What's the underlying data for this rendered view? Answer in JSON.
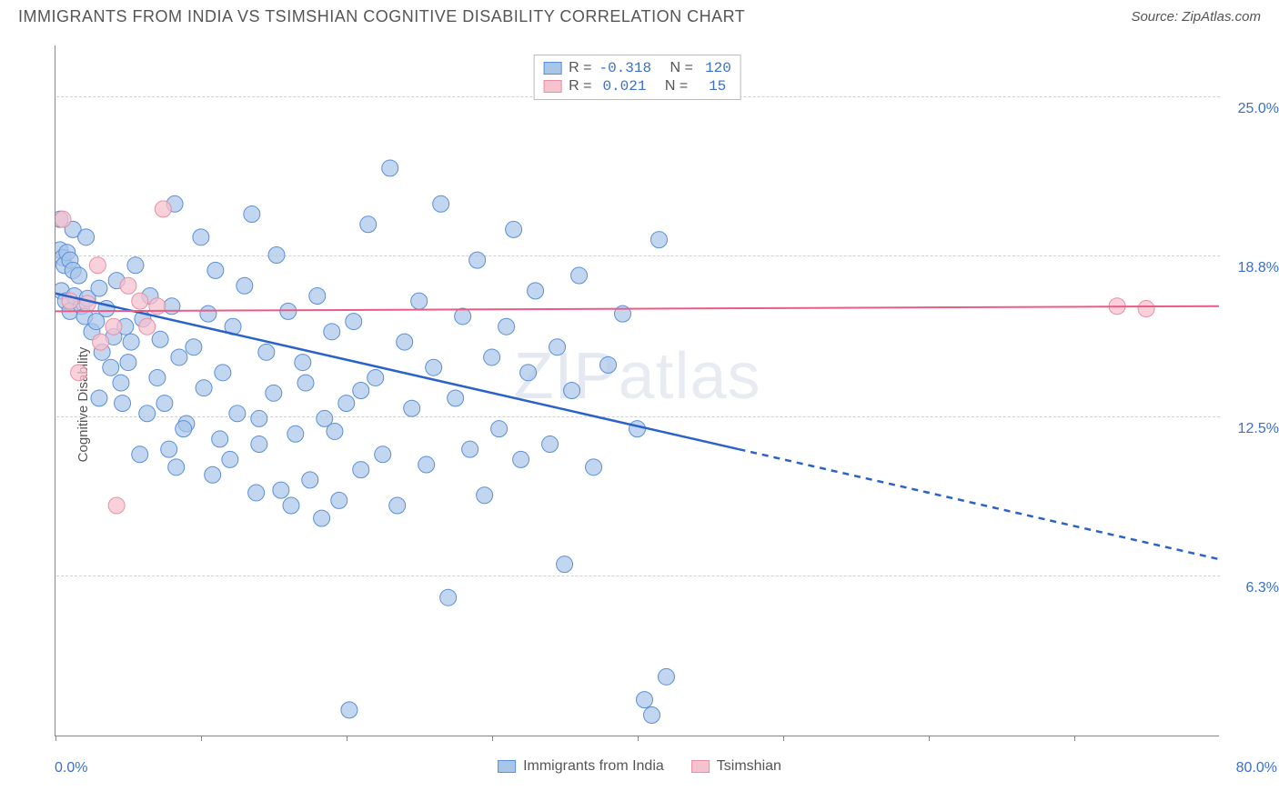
{
  "header": {
    "title": "IMMIGRANTS FROM INDIA VS TSIMSHIAN COGNITIVE DISABILITY CORRELATION CHART",
    "source": "Source: ZipAtlas.com"
  },
  "watermark": {
    "left": "ZIP",
    "right": "atlas"
  },
  "chart": {
    "type": "scatter",
    "background_color": "#ffffff",
    "grid_color": "#d0d0d0",
    "axis_color": "#888888",
    "label_color": "#3b6fc9",
    "text_color": "#555555",
    "label_fontsize": 16,
    "title_fontsize": 18,
    "xlim": [
      0,
      80
    ],
    "ylim": [
      0,
      27
    ],
    "x_tick_positions": [
      0,
      10,
      20,
      30,
      40,
      50,
      60,
      70
    ],
    "x_axis_labels": {
      "min": "0.0%",
      "max": "80.0%"
    },
    "y_gridlines": [
      {
        "value": 6.3,
        "label": "6.3%"
      },
      {
        "value": 12.5,
        "label": "12.5%"
      },
      {
        "value": 18.8,
        "label": "18.8%"
      },
      {
        "value": 25.0,
        "label": "25.0%"
      }
    ],
    "y_axis_title": "Cognitive Disability",
    "series": [
      {
        "name": "Immigrants from India",
        "color_fill": "#a8c5ea",
        "color_stroke": "#5a8fd6",
        "marker_radius": 9,
        "marker_opacity": 0.7,
        "R": "-0.318",
        "N": "120",
        "trend": {
          "solid": {
            "x1": 0,
            "y1": 17.3,
            "x2": 47,
            "y2": 11.2
          },
          "dashed": {
            "x1": 47,
            "y1": 11.2,
            "x2": 80,
            "y2": 6.9
          },
          "color": "#2a62c9",
          "width": 2.5
        },
        "points": [
          [
            0.3,
            19.0
          ],
          [
            0.5,
            18.7
          ],
          [
            0.6,
            18.4
          ],
          [
            0.8,
            18.9
          ],
          [
            1.0,
            18.6
          ],
          [
            1.2,
            18.2
          ],
          [
            0.4,
            17.4
          ],
          [
            0.7,
            17.0
          ],
          [
            1.0,
            16.6
          ],
          [
            1.3,
            17.2
          ],
          [
            1.6,
            18.0
          ],
          [
            1.8,
            16.8
          ],
          [
            2.0,
            16.4
          ],
          [
            2.2,
            17.1
          ],
          [
            2.5,
            15.8
          ],
          [
            2.8,
            16.2
          ],
          [
            3.0,
            17.5
          ],
          [
            3.2,
            15.0
          ],
          [
            3.5,
            16.7
          ],
          [
            3.8,
            14.4
          ],
          [
            4.0,
            15.6
          ],
          [
            4.2,
            17.8
          ],
          [
            4.5,
            13.8
          ],
          [
            4.8,
            16.0
          ],
          [
            5.0,
            14.6
          ],
          [
            5.2,
            15.4
          ],
          [
            5.5,
            18.4
          ],
          [
            6.0,
            16.3
          ],
          [
            6.5,
            17.2
          ],
          [
            7.0,
            14.0
          ],
          [
            7.2,
            15.5
          ],
          [
            7.5,
            13.0
          ],
          [
            8.0,
            16.8
          ],
          [
            8.2,
            20.8
          ],
          [
            8.5,
            14.8
          ],
          [
            9.0,
            12.2
          ],
          [
            9.5,
            15.2
          ],
          [
            10.0,
            19.5
          ],
          [
            10.2,
            13.6
          ],
          [
            10.5,
            16.5
          ],
          [
            11.0,
            18.2
          ],
          [
            11.5,
            14.2
          ],
          [
            12.0,
            10.8
          ],
          [
            12.2,
            16.0
          ],
          [
            12.5,
            12.6
          ],
          [
            13.0,
            17.6
          ],
          [
            13.5,
            20.4
          ],
          [
            14.0,
            11.4
          ],
          [
            14.5,
            15.0
          ],
          [
            15.0,
            13.4
          ],
          [
            15.2,
            18.8
          ],
          [
            15.5,
            9.6
          ],
          [
            16.0,
            16.6
          ],
          [
            16.5,
            11.8
          ],
          [
            17.0,
            14.6
          ],
          [
            17.5,
            10.0
          ],
          [
            18.0,
            17.2
          ],
          [
            18.5,
            12.4
          ],
          [
            19.0,
            15.8
          ],
          [
            19.5,
            9.2
          ],
          [
            20.0,
            13.0
          ],
          [
            20.2,
            1.0
          ],
          [
            20.5,
            16.2
          ],
          [
            21.0,
            10.4
          ],
          [
            21.5,
            20.0
          ],
          [
            22.0,
            14.0
          ],
          [
            22.5,
            11.0
          ],
          [
            23.0,
            22.2
          ],
          [
            23.5,
            9.0
          ],
          [
            24.0,
            15.4
          ],
          [
            24.5,
            12.8
          ],
          [
            25.0,
            17.0
          ],
          [
            25.5,
            10.6
          ],
          [
            26.0,
            14.4
          ],
          [
            26.5,
            20.8
          ],
          [
            27.0,
            5.4
          ],
          [
            27.5,
            13.2
          ],
          [
            28.0,
            16.4
          ],
          [
            28.5,
            11.2
          ],
          [
            29.0,
            18.6
          ],
          [
            29.5,
            9.4
          ],
          [
            30.0,
            14.8
          ],
          [
            30.5,
            12.0
          ],
          [
            31.0,
            16.0
          ],
          [
            31.5,
            19.8
          ],
          [
            32.0,
            10.8
          ],
          [
            32.5,
            14.2
          ],
          [
            33.0,
            17.4
          ],
          [
            34.0,
            11.4
          ],
          [
            34.5,
            15.2
          ],
          [
            35.0,
            6.7
          ],
          [
            35.5,
            13.5
          ],
          [
            36.0,
            18.0
          ],
          [
            37.0,
            10.5
          ],
          [
            38.0,
            14.5
          ],
          [
            39.0,
            16.5
          ],
          [
            40.0,
            12.0
          ],
          [
            40.5,
            1.4
          ],
          [
            41.0,
            0.8
          ],
          [
            41.5,
            19.4
          ],
          [
            42.0,
            2.3
          ],
          [
            1.2,
            19.8
          ],
          [
            2.1,
            19.5
          ],
          [
            0.3,
            20.2
          ],
          [
            5.8,
            11.0
          ],
          [
            7.8,
            11.2
          ],
          [
            8.3,
            10.5
          ],
          [
            10.8,
            10.2
          ],
          [
            13.8,
            9.5
          ],
          [
            16.2,
            9.0
          ],
          [
            18.3,
            8.5
          ],
          [
            21.0,
            13.5
          ],
          [
            3.0,
            13.2
          ],
          [
            4.6,
            13.0
          ],
          [
            6.3,
            12.6
          ],
          [
            8.8,
            12.0
          ],
          [
            11.3,
            11.6
          ],
          [
            14.0,
            12.4
          ],
          [
            17.2,
            13.8
          ],
          [
            19.2,
            11.9
          ]
        ]
      },
      {
        "name": "Tsimshian",
        "color_fill": "#f5c2cd",
        "color_stroke": "#e88fa4",
        "marker_radius": 9,
        "marker_opacity": 0.75,
        "R": "0.021",
        "N": "15",
        "trend": {
          "solid": {
            "x1": 0,
            "y1": 16.6,
            "x2": 80,
            "y2": 16.8
          },
          "dashed": null,
          "color": "#e85c85",
          "width": 2
        },
        "points": [
          [
            0.5,
            20.2
          ],
          [
            1.6,
            14.2
          ],
          [
            2.2,
            16.9
          ],
          [
            2.9,
            18.4
          ],
          [
            4.0,
            16.0
          ],
          [
            5.0,
            17.6
          ],
          [
            4.2,
            9.0
          ],
          [
            3.1,
            15.4
          ],
          [
            5.8,
            17.0
          ],
          [
            6.3,
            16.0
          ],
          [
            7.0,
            16.8
          ],
          [
            7.4,
            20.6
          ],
          [
            1.0,
            17.0
          ],
          [
            73.0,
            16.8
          ],
          [
            75.0,
            16.7
          ]
        ]
      }
    ],
    "legend_top_labels": {
      "R": "R =",
      "N": "N ="
    }
  }
}
